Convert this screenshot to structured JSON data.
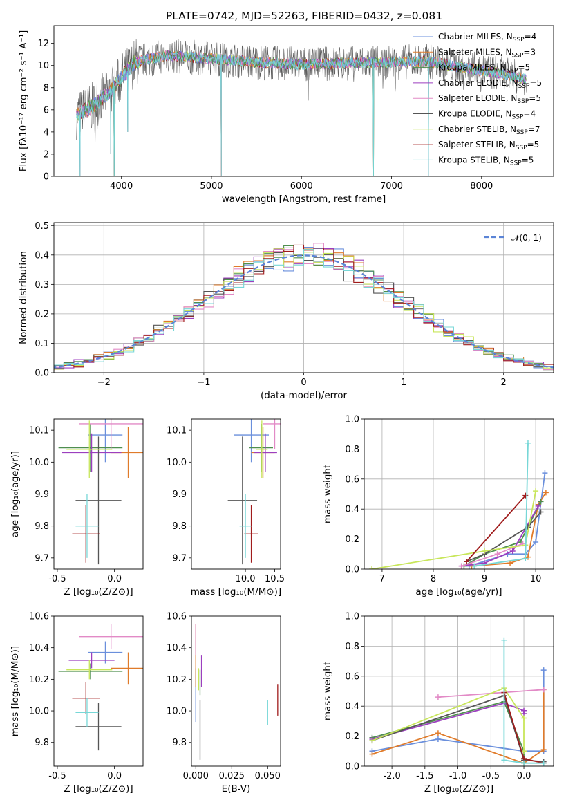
{
  "title": "PLATE=0742, MJD=52263, FIBERID=0432, z=0.081",
  "colors": [
    "#6a8fdc",
    "#e07b2a",
    "#4f8f4f",
    "#9c3fbf",
    "#e28ac6",
    "#555555",
    "#c8e65a",
    "#a01c1c",
    "#77d7d7"
  ],
  "chart_data": [
    {
      "type": "line",
      "panel": "spectrum",
      "xlabel": "wavelength [Angstrom, rest frame]",
      "ylabel": "Flux [fλ10⁻¹⁷ erg cm⁻² s⁻¹ A⁻¹]",
      "xlim": [
        3250,
        8800
      ],
      "ylim": [
        0,
        13.6
      ],
      "xticks": [
        4000,
        5000,
        6000,
        7000,
        8000
      ],
      "yticks": [
        0,
        2,
        4,
        6,
        8,
        10,
        12
      ],
      "grid": false,
      "legend_position": "right",
      "continuum_points": {
        "x": [
          3500,
          3700,
          3800,
          3900,
          4000,
          4150,
          4500,
          5000,
          5500,
          6000,
          6500,
          7000,
          7400,
          7800,
          8200,
          8500
        ],
        "y": [
          5.5,
          6.4,
          7.2,
          7.8,
          8.9,
          10.3,
          10.9,
          10.6,
          10.3,
          10.1,
          10.2,
          10.3,
          10.4,
          9.8,
          9.3,
          8.7
        ]
      },
      "dips": [
        {
          "x": 3540,
          "y": 0.0
        },
        {
          "x": 3880,
          "y": 2.0
        },
        {
          "x": 3920,
          "y": 0.0
        },
        {
          "x": 4070,
          "y": 4.0
        },
        {
          "x": 5110,
          "y": 0.0
        },
        {
          "x": 6800,
          "y": 0.0
        },
        {
          "x": 7410,
          "y": 0.0
        }
      ],
      "series": [
        {
          "name": "Chabrier MILES, N<sub>SSP</sub>=4"
        },
        {
          "name": "Salpeter MILES, N<sub>SSP</sub>=3"
        },
        {
          "name": "Kroupa MILES, N<sub>SSP</sub>=5"
        },
        {
          "name": "Chabrier ELODIE, N<sub>SSP</sub>=5"
        },
        {
          "name": "Salpeter ELODIE, N<sub>SSP</sub>=5"
        },
        {
          "name": "Kroupa ELODIE, N<sub>SSP</sub>=4"
        },
        {
          "name": "Chabrier STELIB, N<sub>SSP</sub>=7"
        },
        {
          "name": "Salpeter STELIB, N<sub>SSP</sub>=5"
        },
        {
          "name": "Kroupa STELIB, N<sub>SSP</sub>=5"
        }
      ]
    },
    {
      "type": "histogram",
      "panel": "residuals",
      "xlabel": "(data-model)/error",
      "ylabel": "Normed distribution",
      "xlim": [
        -2.5,
        2.5
      ],
      "ylim": [
        0,
        0.51
      ],
      "xticks": [
        -2,
        -1,
        0,
        1,
        2
      ],
      "yticks": [
        0.0,
        0.1,
        0.2,
        0.3,
        0.4,
        0.5
      ],
      "grid": true,
      "legend_position": "top-right",
      "reference_curve": {
        "name": "𝒩(0, 1)",
        "mean": 0,
        "sigma": 1
      },
      "bin_width": 0.1
    },
    {
      "type": "errorbar",
      "panel": "age-vs-metallicity",
      "xlabel": "Z [log₁₀(Z/Z⊙)]",
      "ylabel": "age  [log₁₀(age/yr)]",
      "xlim": [
        -0.53,
        0.25
      ],
      "ylim": [
        9.665,
        10.135
      ],
      "xticks": [
        -0.5,
        0.0
      ],
      "yticks": [
        9.7,
        9.8,
        9.9,
        10.0,
        10.1
      ],
      "points": [
        {
          "x": -0.08,
          "y": 10.085,
          "xerr": 0.15,
          "yerr": 0.085
        },
        {
          "x": 0.12,
          "y": 10.03,
          "xerr": 0.15,
          "yerr": 0.08
        },
        {
          "x": -0.21,
          "y": 10.045,
          "xerr": 0.28,
          "yerr": 0.075
        },
        {
          "x": -0.2,
          "y": 10.03,
          "xerr": 0.26,
          "yerr": 0.06
        },
        {
          "x": -0.03,
          "y": 10.12,
          "xerr": 0.28,
          "yerr": 0.08
        },
        {
          "x": -0.14,
          "y": 9.88,
          "xerr": 0.2,
          "yerr": 0.2
        },
        {
          "x": -0.22,
          "y": 10.04,
          "xerr": 0.2,
          "yerr": 0.09
        },
        {
          "x": -0.25,
          "y": 9.775,
          "xerr": 0.12,
          "yerr": 0.09
        },
        {
          "x": -0.24,
          "y": 9.8,
          "xerr": 0.1,
          "yerr": 0.1
        }
      ]
    },
    {
      "type": "errorbar",
      "panel": "age-vs-mass",
      "xlabel": "mass [log₁₀(M/M⊙)]",
      "ylabel": "",
      "xlim": [
        9.08,
        10.6
      ],
      "ylim": [
        9.665,
        10.135
      ],
      "xticks": [
        10.0,
        10.5
      ],
      "yticks": [
        9.7,
        9.8,
        9.9,
        10.0,
        10.1
      ],
      "points": [
        {
          "x": 10.1,
          "y": 10.085,
          "xerr": 0.3,
          "yerr": 0.085
        },
        {
          "x": 10.3,
          "y": 10.03,
          "xerr": 0.2,
          "yerr": 0.08
        },
        {
          "x": 10.27,
          "y": 10.045,
          "xerr": 0.2,
          "yerr": 0.075
        },
        {
          "x": 10.34,
          "y": 10.03,
          "xerr": 0.2,
          "yerr": 0.06
        },
        {
          "x": 10.5,
          "y": 10.12,
          "xerr": 0.2,
          "yerr": 0.08
        },
        {
          "x": 9.95,
          "y": 9.88,
          "xerr": 0.25,
          "yerr": 0.2
        },
        {
          "x": 10.28,
          "y": 10.04,
          "xerr": 0.1,
          "yerr": 0.09
        },
        {
          "x": 10.1,
          "y": 9.775,
          "xerr": 0.12,
          "yerr": 0.09
        },
        {
          "x": 10.0,
          "y": 9.8,
          "xerr": 0.1,
          "yerr": 0.1
        }
      ]
    },
    {
      "type": "line",
      "panel": "mass-weight-vs-age",
      "xlabel": "age  [log₁₀(age/yr)]",
      "ylabel": "mass weight",
      "xlim": [
        6.65,
        10.35
      ],
      "ylim": [
        0,
        1.0
      ],
      "xticks": [
        7,
        8,
        9,
        10
      ],
      "yticks": [
        0.0,
        0.2,
        0.4,
        0.6,
        0.8,
        1.0
      ],
      "grid": true,
      "series": [
        {
          "x": [
            8.7,
            9.45,
            9.8,
            10.0,
            10.18
          ],
          "values": [
            0.02,
            0.1,
            0.1,
            0.18,
            0.64
          ]
        },
        {
          "x": [
            8.75,
            9.5,
            9.85,
            10.05,
            10.2
          ],
          "values": [
            0.02,
            0.04,
            0.08,
            0.43,
            0.51
          ]
        },
        {
          "x": [
            8.6,
            9.0,
            9.7,
            10.1
          ],
          "values": [
            0.02,
            0.1,
            0.18,
            0.45
          ]
        },
        {
          "x": [
            8.55,
            9.0,
            9.55,
            10.05
          ],
          "values": [
            0.02,
            0.04,
            0.12,
            0.42
          ]
        },
        {
          "x": [
            8.55,
            9.25,
            9.75
          ],
          "values": [
            0.02,
            0.1,
            0.17
          ]
        },
        {
          "x": [
            8.65,
            9.0,
            9.85,
            10.1
          ],
          "values": [
            0.05,
            0.1,
            0.28,
            0.38
          ]
        },
        {
          "x": [
            6.8,
            9.0,
            9.8,
            10.0
          ],
          "values": [
            0.0,
            0.12,
            0.16,
            0.52
          ]
        },
        {
          "x": [
            8.65,
            9.8
          ],
          "values": [
            0.05,
            0.49
          ]
        },
        {
          "x": [
            8.8,
            9.8,
            9.85
          ],
          "values": [
            0.02,
            0.07,
            0.84
          ]
        }
      ]
    },
    {
      "type": "errorbar",
      "panel": "mass-vs-metallicity",
      "xlabel": "Z [log₁₀(Z/Z⊙)]",
      "ylabel": "mass [log₁₀(M/M⊙)]",
      "xlim": [
        -0.53,
        0.25
      ],
      "ylim": [
        9.65,
        10.6
      ],
      "xticks": [
        -0.5,
        0.0
      ],
      "yticks": [
        9.8,
        10.0,
        10.2,
        10.4,
        10.6
      ],
      "points": [
        {
          "x": -0.08,
          "y": 10.37,
          "xerr": 0.15,
          "yerr": 0.07
        },
        {
          "x": 0.12,
          "y": 10.27,
          "xerr": 0.15,
          "yerr": 0.1
        },
        {
          "x": -0.21,
          "y": 10.25,
          "xerr": 0.28,
          "yerr": 0.05
        },
        {
          "x": -0.2,
          "y": 10.32,
          "xerr": 0.2,
          "yerr": 0.05
        },
        {
          "x": -0.03,
          "y": 10.47,
          "xerr": 0.28,
          "yerr": 0.08
        },
        {
          "x": -0.14,
          "y": 9.9,
          "xerr": 0.2,
          "yerr": 0.15
        },
        {
          "x": -0.22,
          "y": 10.26,
          "xerr": 0.2,
          "yerr": 0.06
        },
        {
          "x": -0.25,
          "y": 10.08,
          "xerr": 0.12,
          "yerr": 0.1
        },
        {
          "x": -0.24,
          "y": 9.99,
          "xerr": 0.1,
          "yerr": 0.09
        }
      ]
    },
    {
      "type": "errorbar",
      "panel": "mass-vs-ebv",
      "xlabel": "E(B-V)",
      "ylabel": "",
      "xlim": [
        -0.003,
        0.059
      ],
      "ylim": [
        9.65,
        10.6
      ],
      "xticks": [
        0.0,
        0.025,
        0.05
      ],
      "yticks": [
        9.8,
        10.0,
        10.2,
        10.4,
        10.6
      ],
      "points": [
        {
          "x": 0.0,
          "y": 10.1,
          "yerr": 0.17
        },
        {
          "x": 0.0,
          "y": 10.35,
          "yerr": 0.2
        },
        {
          "x": 0.003,
          "y": 10.18,
          "yerr": 0.08
        },
        {
          "x": 0.004,
          "y": 10.25,
          "yerr": 0.1
        },
        {
          "x": 0.0,
          "y": 10.45,
          "yerr": 0.1
        },
        {
          "x": 0.003,
          "y": 9.88,
          "yerr": 0.19
        },
        {
          "x": 0.002,
          "y": 10.2,
          "yerr": 0.07
        },
        {
          "x": 0.057,
          "y": 10.07,
          "yerr": 0.1
        },
        {
          "x": 0.05,
          "y": 9.99,
          "yerr": 0.08
        }
      ]
    },
    {
      "type": "line",
      "panel": "mass-weight-vs-metallicity",
      "xlabel": "Z [log₁₀(Z/Z⊙)]",
      "ylabel": "mass weight",
      "xlim": [
        -2.42,
        0.45
      ],
      "ylim": [
        0,
        1.0
      ],
      "xticks": [
        -2.0,
        -1.5,
        -1.0,
        -0.5,
        0.0
      ],
      "yticks": [
        0.0,
        0.2,
        0.4,
        0.6,
        0.8,
        1.0
      ],
      "grid": true,
      "series": [
        {
          "x": [
            -2.3,
            -1.3,
            0.0,
            0.3,
            0.3
          ],
          "values": [
            0.1,
            0.18,
            0.1,
            0.1,
            0.64
          ]
        },
        {
          "x": [
            -2.3,
            -1.3,
            0.0,
            0.3,
            0.3
          ],
          "values": [
            0.08,
            0.22,
            0.02,
            0.11,
            0.51
          ]
        },
        {
          "x": [
            -2.3,
            -0.3,
            0.0,
            0.0
          ],
          "values": [
            0.19,
            0.43,
            0.1,
            0.05
          ]
        },
        {
          "x": [
            -2.3,
            -0.3,
            0.0,
            0.0
          ],
          "values": [
            0.18,
            0.42,
            0.37,
            0.35
          ]
        },
        {
          "x": [
            -1.3,
            0.3
          ],
          "values": [
            0.46,
            0.51
          ]
        },
        {
          "x": [
            -2.3,
            -0.3,
            0.0,
            0.3
          ],
          "values": [
            0.17,
            0.47,
            0.04,
            0.03
          ]
        },
        {
          "x": [
            -2.3,
            -0.3,
            0.0,
            0.0
          ],
          "values": [
            0.17,
            0.52,
            0.32,
            0.1
          ]
        },
        {
          "x": [
            -0.3,
            0.0,
            0.3
          ],
          "values": [
            0.49,
            0.05,
            0.02
          ]
        },
        {
          "x": [
            -0.3,
            -0.3,
            0.0,
            0.3
          ],
          "values": [
            0.84,
            0.04,
            0.02,
            0.02
          ]
        }
      ]
    }
  ]
}
